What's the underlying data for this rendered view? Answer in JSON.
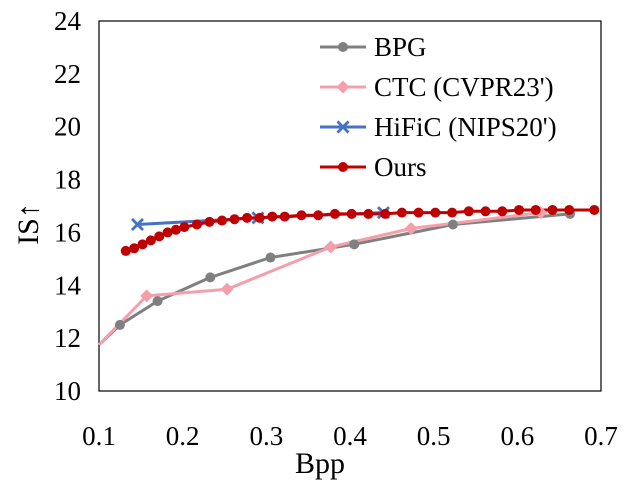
{
  "chart_data": {
    "type": "line",
    "title": "",
    "xlabel": "Bpp",
    "ylabel": "IS↑",
    "xlim": [
      0.1,
      0.7
    ],
    "ylim": [
      10,
      24
    ],
    "xticks": [
      "0.1",
      "0.2",
      "0.3",
      "0.4",
      "0.5",
      "0.6",
      "0.7"
    ],
    "yticks": [
      "10",
      "12",
      "14",
      "16",
      "18",
      "20",
      "22",
      "24"
    ],
    "grid": false,
    "legend_position": "top-right",
    "series": [
      {
        "name": "BPG",
        "color": "#808080",
        "marker": "circle",
        "x": [
          0.1,
          0.125,
          0.17,
          0.233,
          0.305,
          0.405,
          0.523,
          0.663
        ],
        "y": [
          11.75,
          12.5,
          13.4,
          14.3,
          15.05,
          15.55,
          16.3,
          16.7
        ]
      },
      {
        "name": "CTC (CVPR23')",
        "color": "#F4A0AC",
        "marker": "diamond",
        "x": [
          0.1,
          0.157,
          0.253,
          0.377,
          0.473,
          0.628
        ],
        "y": [
          11.75,
          13.6,
          13.85,
          15.45,
          16.15,
          16.75
        ]
      },
      {
        "name": "HiFiC (NIPS20')",
        "color": "#4472C4",
        "marker": "x",
        "x": [
          0.146,
          0.29,
          0.44
        ],
        "y": [
          16.3,
          16.55,
          16.75
        ]
      },
      {
        "name": "Ours",
        "color": "#C00000",
        "marker": "circle",
        "x": [
          0.132,
          0.142,
          0.152,
          0.162,
          0.172,
          0.182,
          0.192,
          0.202,
          0.217,
          0.232,
          0.247,
          0.262,
          0.277,
          0.292,
          0.307,
          0.322,
          0.342,
          0.362,
          0.382,
          0.402,
          0.422,
          0.442,
          0.462,
          0.482,
          0.502,
          0.522,
          0.542,
          0.562,
          0.582,
          0.602,
          0.622,
          0.642,
          0.662,
          0.692
        ],
        "y": [
          15.3,
          15.4,
          15.55,
          15.7,
          15.85,
          16.0,
          16.1,
          16.2,
          16.3,
          16.4,
          16.45,
          16.5,
          16.55,
          16.55,
          16.6,
          16.6,
          16.65,
          16.65,
          16.7,
          16.7,
          16.7,
          16.7,
          16.75,
          16.75,
          16.75,
          16.75,
          16.8,
          16.8,
          16.8,
          16.85,
          16.85,
          16.85,
          16.85,
          16.85
        ]
      }
    ]
  }
}
